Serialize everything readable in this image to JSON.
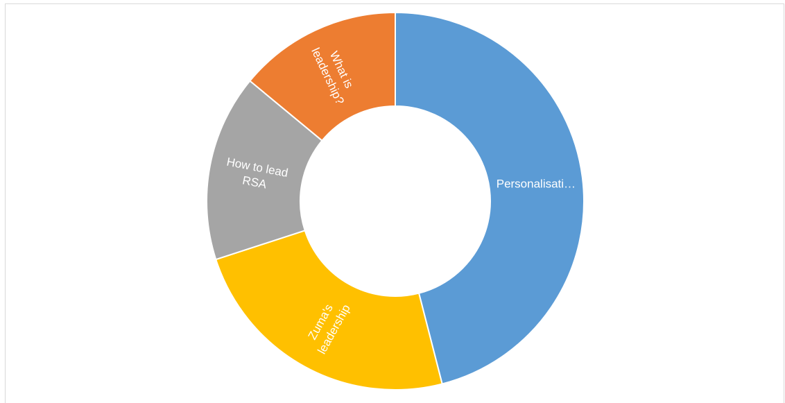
{
  "chart_data": {
    "type": "pie",
    "variant": "doughnut",
    "title": "",
    "legend": "none",
    "slices": [
      {
        "label": "Personalisati…",
        "value": 46,
        "color": "#5B9BD5"
      },
      {
        "label": "Zuma's leadership",
        "label_lines": [
          "Zuma's",
          "leadership"
        ],
        "value": 24,
        "color": "#FFC000"
      },
      {
        "label": "How to lead RSA",
        "label_lines": [
          "How to lead",
          "RSA"
        ],
        "value": 16,
        "color": "#A5A5A5"
      },
      {
        "label": "What is leadership?",
        "label_lines": [
          "What is",
          "leadership?"
        ],
        "value": 14,
        "color": "#ED7D31"
      }
    ]
  }
}
